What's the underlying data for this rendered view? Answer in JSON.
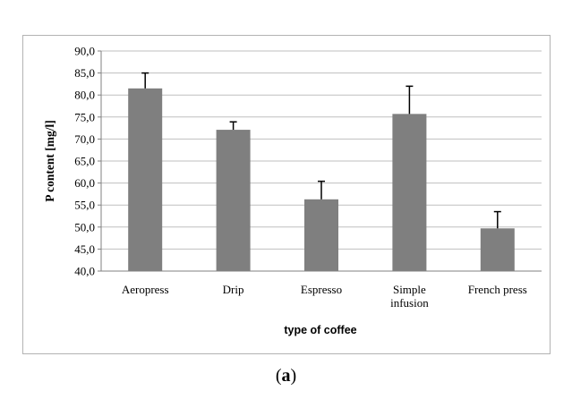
{
  "chart_data": {
    "type": "bar",
    "categories": [
      "Aeropress",
      "Drip",
      "Espresso",
      "Simple infusion",
      "French press"
    ],
    "category_lines": [
      [
        "Aeropress"
      ],
      [
        "Drip"
      ],
      [
        "Espresso"
      ],
      [
        "Simple",
        "infusion"
      ],
      [
        "French press"
      ]
    ],
    "values": [
      81.5,
      72.1,
      56.3,
      75.7,
      49.7
    ],
    "errors": [
      3.5,
      1.8,
      4.1,
      6.3,
      3.8
    ],
    "ylabel": "P content [mg/l]",
    "xlabel": "type of coffee",
    "ylim": [
      40,
      90
    ],
    "ytick_step": 5,
    "yticks": [
      "40,0",
      "45,0",
      "50,0",
      "55,0",
      "60,0",
      "65,0",
      "70,0",
      "75,0",
      "80,0",
      "85,0",
      "90,0"
    ],
    "grid": true,
    "bar_color": "#7f7f7f",
    "grid_color": "#bfbfbf"
  },
  "caption": {
    "open": "(",
    "label": "a",
    "close": ")"
  }
}
